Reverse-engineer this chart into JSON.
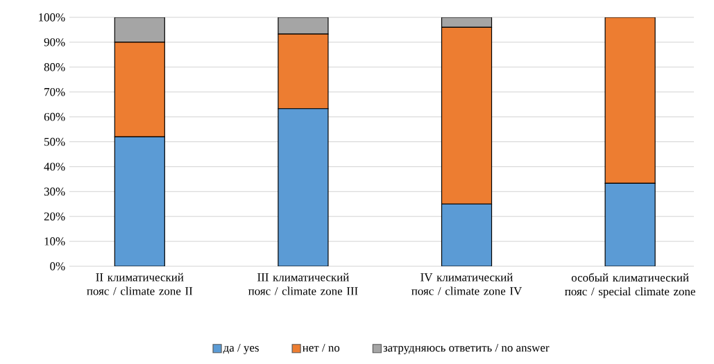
{
  "chart_data": {
    "type": "bar",
    "stacked": true,
    "categories": [
      "II климатический пояс / climate zone II",
      "III климатический пояс / climate zone III",
      "IV климатический пояс / climate zone IV",
      "особый климатический пояс / special climate zone"
    ],
    "series": [
      {
        "name": "да / yes",
        "color": "#5b9bd5",
        "values": [
          52,
          63.3,
          25,
          33.3
        ]
      },
      {
        "name": "нет / no",
        "color": "#ed7d31",
        "values": [
          38,
          30,
          71,
          66.7
        ]
      },
      {
        "name": "затрудняюсь ответить / no answer",
        "color": "#a5a5a5",
        "values": [
          10,
          6.7,
          4,
          null
        ]
      }
    ],
    "ylim": [
      0,
      100
    ],
    "yticks": [
      {
        "value": 0,
        "label": "0%"
      },
      {
        "value": 10,
        "label": "10%"
      },
      {
        "value": 20,
        "label": "20%"
      },
      {
        "value": 30,
        "label": "30%"
      },
      {
        "value": 40,
        "label": "40%"
      },
      {
        "value": 50,
        "label": "50%"
      },
      {
        "value": 60,
        "label": "60%"
      },
      {
        "value": 70,
        "label": "70%"
      },
      {
        "value": 80,
        "label": "80%"
      },
      {
        "value": 90,
        "label": "90%"
      },
      {
        "value": 100,
        "label": "100%"
      }
    ],
    "grid": "y",
    "legend": "bottom"
  }
}
